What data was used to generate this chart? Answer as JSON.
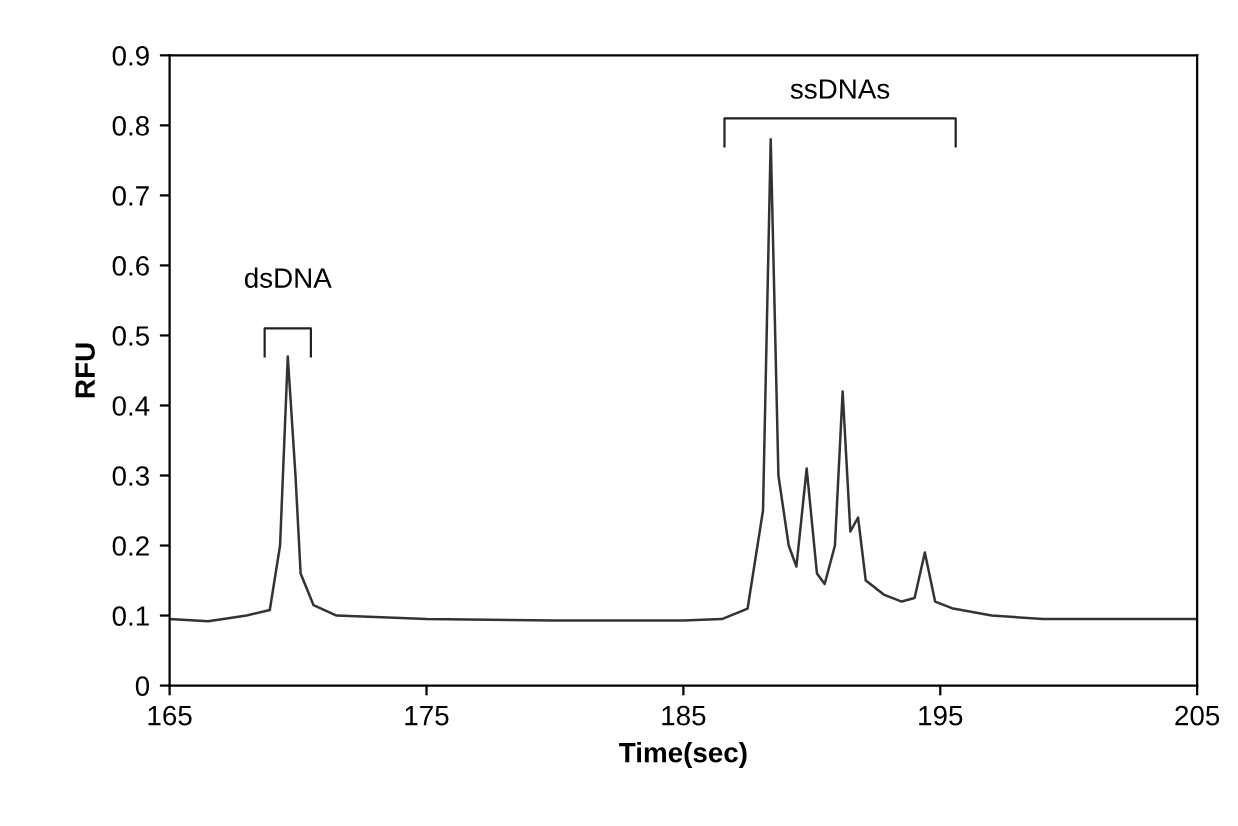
{
  "chart_data": {
    "type": "line",
    "xlabel": "Time(sec)",
    "ylabel": "RFU",
    "x": [
      165,
      166.5,
      168,
      168.9,
      169.3,
      169.6,
      169.9,
      170.1,
      170.6,
      171.5,
      175,
      180,
      185,
      186.5,
      187.5,
      188.1,
      188.4,
      188.7,
      189.1,
      189.4,
      189.8,
      190.2,
      190.5,
      190.9,
      191.2,
      191.5,
      191.8,
      192.1,
      192.8,
      193.5,
      194.0,
      194.4,
      194.8,
      195.5,
      197,
      199,
      205
    ],
    "series": [
      {
        "color": "#333333",
        "values": [
          0.095,
          0.092,
          0.1,
          0.108,
          0.2,
          0.47,
          0.3,
          0.16,
          0.115,
          0.1,
          0.095,
          0.093,
          0.093,
          0.095,
          0.11,
          0.25,
          0.78,
          0.3,
          0.2,
          0.17,
          0.31,
          0.16,
          0.145,
          0.2,
          0.42,
          0.22,
          0.24,
          0.15,
          0.13,
          0.12,
          0.125,
          0.19,
          0.12,
          0.11,
          0.1,
          0.095,
          0.095
        ]
      }
    ],
    "xlim": [
      165,
      205
    ],
    "xticks": [
      165,
      175,
      185,
      195,
      205
    ],
    "ylim": [
      0,
      0.9
    ],
    "yticks": [
      0,
      0.1,
      0.2,
      0.3,
      0.4,
      0.5,
      0.6,
      0.7,
      0.8,
      0.9
    ],
    "annotations": [
      {
        "text": "dsDNA",
        "x": 169.6,
        "y": 0.47
      },
      {
        "text": "ssDNAs",
        "x": 188.4,
        "y": 0.78
      }
    ],
    "grid": false,
    "legend": false
  }
}
